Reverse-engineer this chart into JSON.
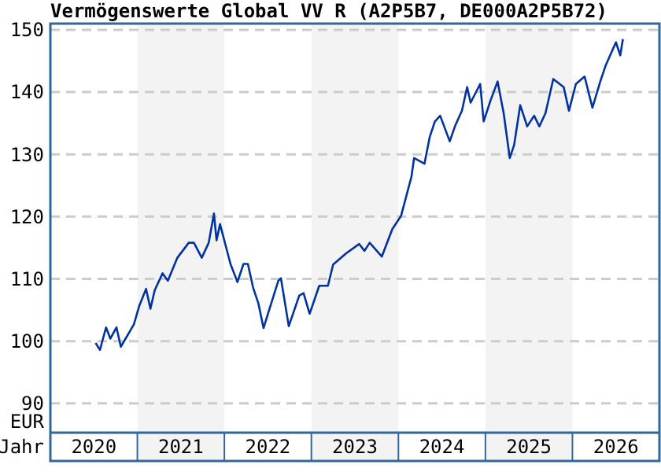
{
  "chart_data": {
    "type": "line",
    "title": "Vermögenswerte Global VV R (A2P5B7, DE000A2P5B72)",
    "xlabel": "Jahr",
    "ylabel": "EUR",
    "x": [
      2020.52,
      2020.57,
      2020.64,
      2020.69,
      2020.76,
      2020.81,
      2020.96,
      2021.02,
      2021.1,
      2021.15,
      2021.2,
      2021.29,
      2021.35,
      2021.46,
      2021.59,
      2021.65,
      2021.74,
      2021.82,
      2021.88,
      2021.91,
      2021.95,
      2022.07,
      2022.15,
      2022.22,
      2022.27,
      2022.33,
      2022.39,
      2022.45,
      2022.51,
      2022.62,
      2022.65,
      2022.74,
      2022.86,
      2022.91,
      2022.98,
      2023.09,
      2023.19,
      2023.25,
      2023.4,
      2023.55,
      2023.61,
      2023.67,
      2023.81,
      2023.93,
      2024.03,
      2024.15,
      2024.18,
      2024.3,
      2024.36,
      2024.42,
      2024.48,
      2024.59,
      2024.65,
      2024.73,
      2024.79,
      2024.83,
      2024.94,
      2024.98,
      2025.06,
      2025.14,
      2025.21,
      2025.28,
      2025.33,
      2025.4,
      2025.48,
      2025.56,
      2025.62,
      2025.69,
      2025.78,
      2025.9,
      2025.96,
      2026.04,
      2026.14,
      2026.23,
      2026.32,
      2026.38,
      2026.5,
      2026.55,
      2026.58
    ],
    "series": [
      {
        "color": "#0033a0",
        "values": [
          99.7,
          98.6,
          102.2,
          100.4,
          102.2,
          99.1,
          102.7,
          105.6,
          108.4,
          105.2,
          108.2,
          110.9,
          109.7,
          113.4,
          115.8,
          115.8,
          113.4,
          115.8,
          120.5,
          116.2,
          118.8,
          112.4,
          109.5,
          112.4,
          112.4,
          108.6,
          106.1,
          102.1,
          104.8,
          109.7,
          110.1,
          102.4,
          107.3,
          107.7,
          104.4,
          108.9,
          108.9,
          112.3,
          114.1,
          115.6,
          114.5,
          115.8,
          113.6,
          118.0,
          120.1,
          126.4,
          129.4,
          128.5,
          132.8,
          135.3,
          136.2,
          132.1,
          134.5,
          137.0,
          140.8,
          138.3,
          141.3,
          135.3,
          138.7,
          141.7,
          136.6,
          129.4,
          131.5,
          137.9,
          134.5,
          136.2,
          134.5,
          136.6,
          142.1,
          140.8,
          137.0,
          141.3,
          142.5,
          137.5,
          141.7,
          144.2,
          148.0,
          145.9,
          148.5
        ]
      }
    ],
    "xlim": [
      2020,
      2027
    ],
    "xticks": [
      {
        "value": 2020.5,
        "label": "2020"
      },
      {
        "value": 2021.5,
        "label": "2021"
      },
      {
        "value": 2022.5,
        "label": "2022"
      },
      {
        "value": 2023.5,
        "label": "2023"
      },
      {
        "value": 2024.5,
        "label": "2024"
      },
      {
        "value": 2025.5,
        "label": "2025"
      },
      {
        "value": 2026.5,
        "label": "2026"
      }
    ],
    "ylim": [
      85.3,
      151
    ],
    "yticks": [
      90,
      100,
      110,
      120,
      130,
      140,
      150
    ],
    "bands": [
      {
        "axis": "x",
        "from": 2021,
        "to": 2022,
        "color": "#f3f3f3"
      },
      {
        "axis": "x",
        "from": 2023,
        "to": 2024,
        "color": "#f3f3f3"
      },
      {
        "axis": "x",
        "from": 2025,
        "to": 2026,
        "color": "#f3f3f3"
      }
    ],
    "grid": "y",
    "line_style": "solid"
  }
}
